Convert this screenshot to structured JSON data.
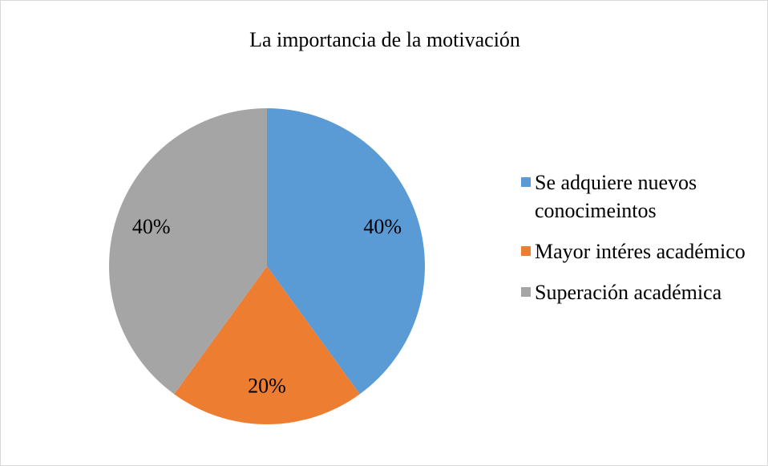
{
  "chart_data": {
    "type": "pie",
    "title": "La importancia de la motivación",
    "categories": [
      "Se adquiere nuevos conocimeintos",
      "Mayor intéres académico",
      "Superación académica"
    ],
    "values": [
      40,
      20,
      40
    ],
    "value_labels": [
      "40%",
      "20%",
      "40%"
    ],
    "colors": [
      "#5b9bd5",
      "#ed7d31",
      "#a5a5a5"
    ],
    "legend": "right"
  }
}
